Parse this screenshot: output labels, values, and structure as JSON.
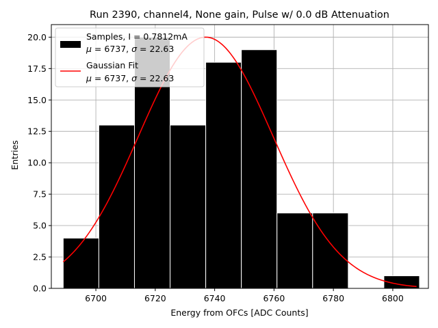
{
  "chart_data": {
    "type": "bar",
    "title": "Run 2390, channel4, None gain, Pulse w/ 0.0 dB Attenuation",
    "xlabel": "Energy from OFCs [ADC Counts]",
    "ylabel": "Entries",
    "xlim": [
      6685,
      6812
    ],
    "ylim": [
      0,
      21
    ],
    "xticks": [
      6700,
      6720,
      6740,
      6760,
      6780,
      6800
    ],
    "yticks": [
      0.0,
      2.5,
      5.0,
      7.5,
      10.0,
      12.5,
      15.0,
      17.5,
      20.0
    ],
    "xtick_labels": [
      "6700",
      "6720",
      "6740",
      "6760",
      "6780",
      "6800"
    ],
    "ytick_labels": [
      "0.0",
      "2.5",
      "5.0",
      "7.5",
      "10.0",
      "12.5",
      "15.0",
      "17.5",
      "20.0"
    ],
    "grid": true,
    "legend_position": "top-left",
    "histogram": {
      "bin_edges": [
        6689,
        6701,
        6713,
        6725,
        6737,
        6749,
        6761,
        6773,
        6785,
        6797,
        6809
      ],
      "counts": [
        4,
        13,
        20,
        13,
        18,
        19,
        6,
        6,
        0,
        1
      ],
      "color": "#000000"
    },
    "gaussian_fit": {
      "mu": 6737,
      "sigma": 22.63,
      "amplitude": 20,
      "x_range": [
        6689,
        6808
      ],
      "color": "#ff0000"
    },
    "series": [
      {
        "name": "Samples, I = 0.7812mA",
        "stats": "$\\mu$ = 6737, $\\sigma$ = 22.63",
        "kind": "histogram"
      },
      {
        "name": "Gaussian Fit",
        "stats": "$\\mu$ = 6737, $\\sigma$ = 22.63",
        "kind": "line"
      }
    ]
  }
}
